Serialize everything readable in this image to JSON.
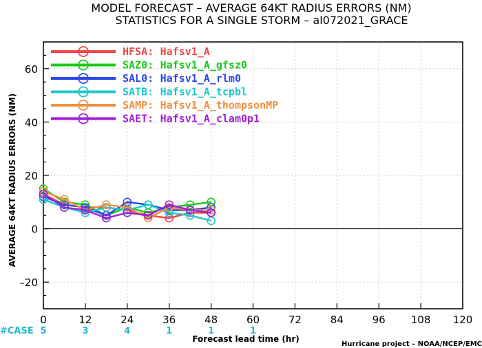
{
  "chart_data": {
    "type": "line",
    "title": "MODEL FORECAST – AVERAGE 64KT RADIUS ERRORS (NM)",
    "subtitle": "STATISTICS FOR A SINGLE STORM – al072021_GRACE",
    "xlabel": "Forecast lead time (hr)",
    "ylabel": "AVERAGE 64KT RADIUS ERRORS (NM)",
    "xlim": [
      0,
      120
    ],
    "ylim": [
      -30,
      70
    ],
    "xticks": [
      0,
      12,
      24,
      36,
      48,
      60,
      72,
      84,
      96,
      108,
      120
    ],
    "yticks": [
      -20,
      0,
      20,
      40,
      60
    ],
    "grid": true,
    "legend_position": "top-left",
    "x": [
      0,
      6,
      12,
      18,
      24,
      30,
      36,
      42,
      48
    ],
    "series": [
      {
        "name": "HFSA:",
        "label": "Hafsv1_A",
        "color": "#f04848",
        "values": [
          13,
          9,
          8,
          8,
          7,
          5,
          4,
          6,
          6
        ]
      },
      {
        "name": "SAZ0:",
        "label": "Hafsv1_A_gfsz0",
        "color": "#18cc18",
        "values": [
          15,
          10,
          9,
          5,
          8,
          6,
          8,
          9,
          10
        ]
      },
      {
        "name": "SAL0:",
        "label": "Hafsv1_A_rlm0",
        "color": "#2848e8",
        "values": [
          12,
          9,
          8,
          5,
          10,
          9,
          7,
          7,
          8
        ]
      },
      {
        "name": "SATB:",
        "label": "Hafsv1_A_tcpbl",
        "color": "#20c8c8",
        "values": [
          11,
          8,
          6,
          8,
          7,
          9,
          6,
          5,
          3
        ]
      },
      {
        "name": "SAMP:",
        "label": "Hafsv1_A_thompsonMP",
        "color": "#f09040",
        "values": [
          14,
          11,
          7,
          9,
          8,
          4,
          8,
          7,
          7
        ]
      },
      {
        "name": "SAET:",
        "label": "Hafsv1_A_clam0p1",
        "color": "#a020d8",
        "values": [
          13,
          8,
          7,
          4,
          6,
          5,
          9,
          7,
          6
        ]
      }
    ],
    "case_counts": {
      "label": "#CASE",
      "x": [
        0,
        12,
        24,
        36,
        48,
        60
      ],
      "values": [
        "5",
        "3",
        "4",
        "1",
        "1",
        "1"
      ]
    },
    "credit": "Hurricane project – NOAA/NCEP/EMC"
  }
}
